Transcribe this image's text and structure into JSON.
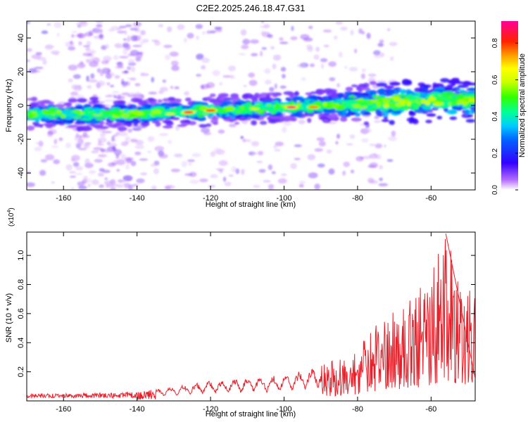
{
  "title": "C2E2.2025.246.18.47.G31",
  "chart_data": [
    {
      "type": "heatmap",
      "name": "spectrogram",
      "xlabel": "Height of straight line (km)",
      "ylabel": "Frequency (Hz)",
      "xlim": [
        -170,
        -48
      ],
      "ylim": [
        -50,
        50
      ],
      "xticks": [
        -160,
        -140,
        -120,
        -100,
        -80,
        -60
      ],
      "yticks": [
        -40,
        -20,
        0,
        20,
        40
      ],
      "colorbar": {
        "label": "Normalized spectral amplitude",
        "range": [
          0,
          0.92
        ],
        "ticks": [
          0.0,
          0.2,
          0.4,
          0.6,
          0.8
        ],
        "tick_labels": [
          "0.0",
          "0.2",
          "0.4",
          "0.6",
          "0.8"
        ]
      },
      "ridge": [
        {
          "x": -170,
          "y": -5
        },
        {
          "x": -160,
          "y": -5
        },
        {
          "x": -150,
          "y": -5
        },
        {
          "x": -140,
          "y": -5
        },
        {
          "x": -130,
          "y": -4
        },
        {
          "x": -120,
          "y": -3
        },
        {
          "x": -110,
          "y": -2
        },
        {
          "x": -100,
          "y": -1
        },
        {
          "x": -90,
          "y": 0
        },
        {
          "x": -80,
          "y": 1
        },
        {
          "x": -70,
          "y": 2
        },
        {
          "x": -60,
          "y": 3
        },
        {
          "x": -48,
          "y": 3
        }
      ],
      "peaks": [
        {
          "x": -126,
          "y": -4,
          "value": 0.85
        },
        {
          "x": -120,
          "y": -3,
          "value": 0.8
        },
        {
          "x": -98,
          "y": -1,
          "value": 0.9
        },
        {
          "x": -92,
          "y": -1,
          "value": 0.75
        },
        {
          "x": -131,
          "y": -5,
          "value": 0.6
        },
        {
          "x": -108,
          "y": -2,
          "value": 0.6
        }
      ]
    },
    {
      "type": "line",
      "name": "snr",
      "xlabel": "Height of straight line (km)",
      "ylabel": "SNR (10 * v/v)",
      "multiplier": "(x10",
      "multiplier_exp": "4",
      "multiplier_close": ")",
      "xlim": [
        -170,
        -48
      ],
      "ylim": [
        0,
        1.16
      ],
      "xticks": [
        -160,
        -140,
        -120,
        -100,
        -80,
        -60
      ],
      "yticks": [
        0.2,
        0.4,
        0.6,
        0.8,
        1.0
      ],
      "ytick_labels": [
        "0.2",
        "0.4",
        "0.6",
        "0.8",
        "1.0"
      ],
      "color": "#e8202a",
      "envelope": [
        {
          "x": -170,
          "y": 0.04
        },
        {
          "x": -150,
          "y": 0.05
        },
        {
          "x": -140,
          "y": 0.06
        },
        {
          "x": -130,
          "y": 0.1
        },
        {
          "x": -120,
          "y": 0.14
        },
        {
          "x": -110,
          "y": 0.16
        },
        {
          "x": -100,
          "y": 0.18
        },
        {
          "x": -90,
          "y": 0.24
        },
        {
          "x": -80,
          "y": 0.35
        },
        {
          "x": -75,
          "y": 0.55
        },
        {
          "x": -70,
          "y": 0.62
        },
        {
          "x": -65,
          "y": 0.72
        },
        {
          "x": -60,
          "y": 0.88
        },
        {
          "x": -56,
          "y": 1.15
        },
        {
          "x": -52,
          "y": 0.9
        },
        {
          "x": -48,
          "y": 0.78
        }
      ],
      "peak": {
        "x": -56,
        "y": 1.15
      }
    }
  ]
}
